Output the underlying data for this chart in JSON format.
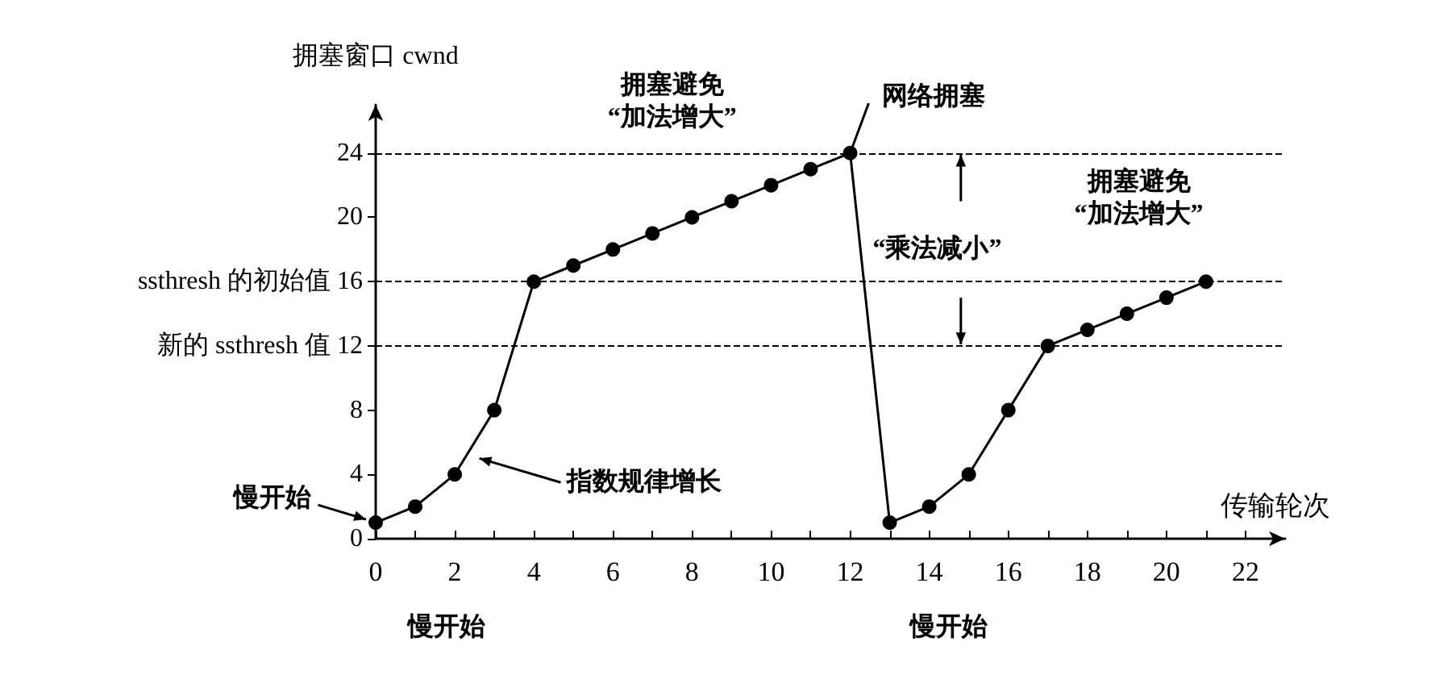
{
  "chart_data": {
    "type": "line",
    "xlabel": "传输轮次",
    "ylabel": "拥塞窗口 cwnd",
    "x": [
      0,
      1,
      2,
      3,
      4,
      5,
      6,
      7,
      8,
      9,
      10,
      11,
      12,
      13,
      14,
      15,
      16,
      17,
      18,
      19,
      20,
      21
    ],
    "series": [
      {
        "color": "#000000",
        "values": [
          1,
          2,
          4,
          8,
          16,
          17,
          18,
          19,
          20,
          21,
          22,
          23,
          24,
          1,
          2,
          4,
          8,
          12,
          13,
          14,
          15,
          16
        ]
      }
    ],
    "xlim": [
      0,
      23
    ],
    "xticks": [
      0,
      {
        "value": 1,
        "label": null
      },
      2,
      {
        "value": 3,
        "label": null
      },
      4,
      {
        "value": 5,
        "label": null
      },
      6,
      {
        "value": 7,
        "label": null
      },
      8,
      {
        "value": 9,
        "label": null
      },
      10,
      {
        "value": 11,
        "label": null
      },
      12,
      {
        "value": 13,
        "label": null
      },
      14,
      {
        "value": 15,
        "label": null
      },
      16,
      {
        "value": 17,
        "label": null
      },
      18,
      {
        "value": 19,
        "label": null
      },
      20,
      {
        "value": 21,
        "label": null
      },
      22
    ],
    "ylim": [
      0,
      27
    ],
    "yticks": [
      0,
      4,
      8,
      {
        "value": 12,
        "label": "新的 ssthresh 值 12"
      },
      {
        "value": 16,
        "label": "ssthresh 的初始值 16"
      },
      20,
      24
    ],
    "ref_lines": [
      {
        "axis": "y",
        "value": 24,
        "color": "#000000",
        "line_style": "dashed"
      },
      {
        "axis": "y",
        "value": 16,
        "color": "#000000",
        "line_style": "dashed"
      },
      {
        "axis": "y",
        "value": 12,
        "color": "#000000",
        "line_style": "dashed"
      }
    ],
    "annotations": [
      {
        "text": "慢开始",
        "x": 0,
        "y": 1
      },
      {
        "text": "指数规律增长",
        "x": 2.5,
        "y": 5
      },
      {
        "text": "网络拥塞",
        "x": 12,
        "y": 24
      },
      "拥塞避免\n“加法增大”",
      "拥塞避免\n“加法增大”",
      "“乘法减小”",
      "慢开始",
      "慢开始"
    ],
    "grid": false,
    "marker": "circle",
    "line_style": "solid"
  }
}
